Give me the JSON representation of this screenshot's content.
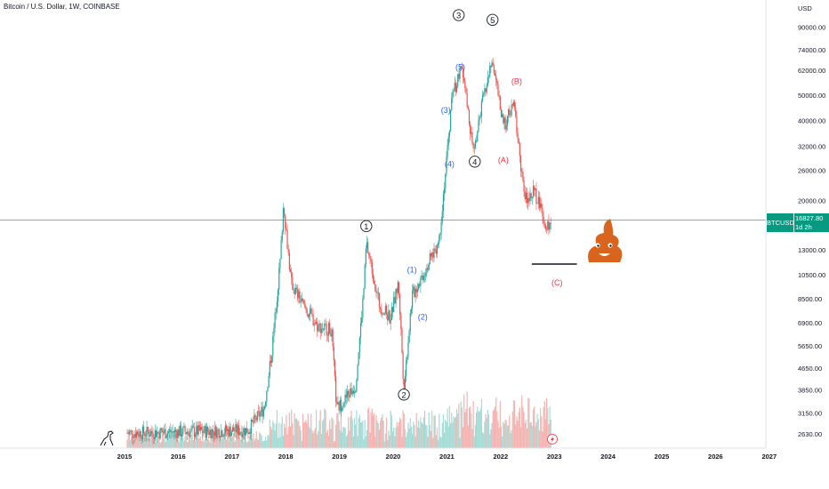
{
  "header": {
    "title": "Bitcoin / U.S. Dollar, 1W, COINBASE"
  },
  "price_tag": {
    "symbol": "BTCUSD",
    "value": "16827.80",
    "countdown": "1d 2h"
  },
  "currency": "USD",
  "colors": {
    "up": "#26a69a",
    "down": "#ef5350",
    "wave_black": "#131722",
    "wave_blue": "#2962ff",
    "wave_red": "#f23645",
    "price_line": "#089981"
  },
  "chart_data": {
    "type": "candlestick",
    "scale": "log",
    "y_ticks": [
      "90000.00",
      "74000.00",
      "62000.00",
      "50000.00",
      "40000.00",
      "32000.00",
      "26000.00",
      "20000.00",
      "13000.00",
      "10500.00",
      "8500.00",
      "6900.00",
      "5650.00",
      "4650.00",
      "3850.00",
      "3150.00",
      "2630.00"
    ],
    "x_ticks": [
      "2015",
      "2016",
      "2017",
      "2018",
      "2019",
      "2020",
      "2021",
      "2022",
      "2023",
      "2024",
      "2025",
      "2026",
      "2027"
    ],
    "current_price": 16827.8,
    "target_level": 11500,
    "price_path": [
      {
        "t": 2015.05,
        "p": 2650
      },
      {
        "t": 2016.0,
        "p": 2680
      },
      {
        "t": 2016.8,
        "p": 2700
      },
      {
        "t": 2017.3,
        "p": 2720
      },
      {
        "t": 2017.6,
        "p": 3300
      },
      {
        "t": 2017.75,
        "p": 5600
      },
      {
        "t": 2017.9,
        "p": 12000
      },
      {
        "t": 2017.96,
        "p": 19600
      },
      {
        "t": 2018.1,
        "p": 9800
      },
      {
        "t": 2018.3,
        "p": 8200
      },
      {
        "t": 2018.6,
        "p": 6700
      },
      {
        "t": 2018.85,
        "p": 6500
      },
      {
        "t": 2018.95,
        "p": 3250
      },
      {
        "t": 2019.3,
        "p": 4000
      },
      {
        "t": 2019.45,
        "p": 9000
      },
      {
        "t": 2019.5,
        "p": 13800
      },
      {
        "t": 2019.75,
        "p": 8000
      },
      {
        "t": 2019.95,
        "p": 7200
      },
      {
        "t": 2020.1,
        "p": 9800
      },
      {
        "t": 2020.2,
        "p": 3900
      },
      {
        "t": 2020.35,
        "p": 8700
      },
      {
        "t": 2020.6,
        "p": 11000
      },
      {
        "t": 2020.85,
        "p": 14000
      },
      {
        "t": 2021.0,
        "p": 29000
      },
      {
        "t": 2021.1,
        "p": 50000
      },
      {
        "t": 2021.28,
        "p": 63000
      },
      {
        "t": 2021.5,
        "p": 30000
      },
      {
        "t": 2021.65,
        "p": 46000
      },
      {
        "t": 2021.85,
        "p": 68000
      },
      {
        "t": 2022.05,
        "p": 38000
      },
      {
        "t": 2022.25,
        "p": 46000
      },
      {
        "t": 2022.45,
        "p": 20000
      },
      {
        "t": 2022.6,
        "p": 22000
      },
      {
        "t": 2022.75,
        "p": 19000
      },
      {
        "t": 2022.85,
        "p": 15800
      },
      {
        "t": 2022.95,
        "p": 16828
      }
    ],
    "wave_labels": [
      {
        "text": "1",
        "style": "circled",
        "t": 2019.5,
        "p": 16000
      },
      {
        "text": "2",
        "style": "circled",
        "t": 2020.2,
        "p": 3700
      },
      {
        "text": "3",
        "style": "circled",
        "t": 2021.22,
        "p": 100000
      },
      {
        "text": "4",
        "style": "circled",
        "t": 2021.52,
        "p": 28000
      },
      {
        "text": "5",
        "style": "circled",
        "t": 2021.85,
        "p": 96000
      },
      {
        "text": "(1)",
        "style": "blue",
        "t": 2020.35,
        "p": 11000
      },
      {
        "text": "(2)",
        "style": "blue",
        "t": 2020.55,
        "p": 7300
      },
      {
        "text": "(3)",
        "style": "blue",
        "t": 2020.98,
        "p": 44000
      },
      {
        "text": "(4)",
        "style": "blue",
        "t": 2021.05,
        "p": 27500
      },
      {
        "text": "(5)",
        "style": "blue",
        "t": 2021.25,
        "p": 64000
      },
      {
        "text": "(A)",
        "style": "red",
        "t": 2022.05,
        "p": 28500
      },
      {
        "text": "(B)",
        "style": "red",
        "t": 2022.3,
        "p": 56500
      },
      {
        "text": "(C)",
        "style": "red",
        "t": 2023.05,
        "p": 9800
      }
    ]
  }
}
